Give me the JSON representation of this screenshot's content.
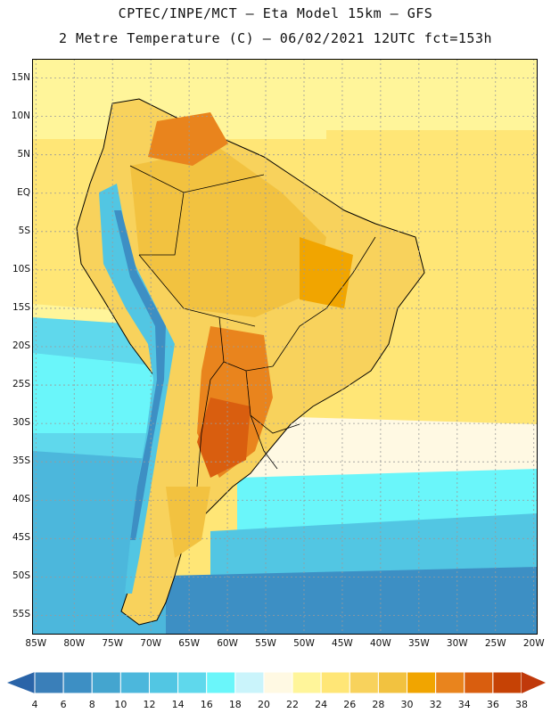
{
  "title": {
    "line1": "CPTEC/INPE/MCT –  Eta Model 15km – GFS",
    "line2": "2 Metre Temperature (C) – 06/02/2021 12UTC fct=153h"
  },
  "map": {
    "lat_labels": [
      "15N",
      "10N",
      "5N",
      "EQ",
      "5S",
      "10S",
      "15S",
      "20S",
      "25S",
      "30S",
      "35S",
      "40S",
      "45S",
      "50S",
      "55S"
    ],
    "lon_labels": [
      "85W",
      "80W",
      "75W",
      "70W",
      "65W",
      "60W",
      "55W",
      "50W",
      "45W",
      "40W",
      "35W",
      "30W",
      "25W",
      "20W"
    ],
    "lat_values": [
      15,
      10,
      5,
      0,
      -5,
      -10,
      -15,
      -20,
      -25,
      -30,
      -35,
      -40,
      -45,
      -50,
      -55
    ],
    "lon_values": [
      -85,
      -80,
      -75,
      -70,
      -65,
      -60,
      -55,
      -50,
      -45,
      -40,
      -35,
      -30,
      -25,
      -20
    ],
    "extent": {
      "lon_min": -85.5,
      "lon_max": -19.5,
      "lat_min": -57.5,
      "lat_max": 17.5
    }
  },
  "colorbar": {
    "levels": [
      "4",
      "6",
      "8",
      "10",
      "12",
      "14",
      "16",
      "18",
      "20",
      "22",
      "24",
      "26",
      "28",
      "30",
      "32",
      "34",
      "36",
      "38"
    ],
    "colors": [
      "#3a7fb9",
      "#3d8fc4",
      "#44a5cf",
      "#4cb7dc",
      "#52c6e3",
      "#5fd8ec",
      "#6af6fa",
      "#caf4fb",
      "#fff9e3",
      "#fff59a",
      "#ffe676",
      "#f8d25c",
      "#f2c240",
      "#f1a500",
      "#e9841d",
      "#d95e0f",
      "#c64205"
    ],
    "low_color": "#2a64a8",
    "high_color": "#c0390b"
  }
}
